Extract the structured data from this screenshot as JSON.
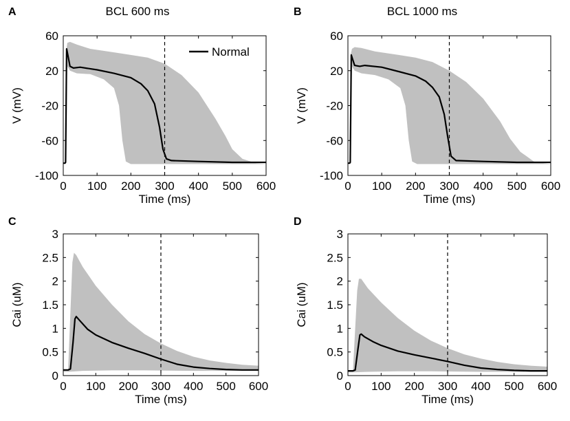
{
  "colors": {
    "band": "#c0c0c0",
    "line": "#000000",
    "marker": "#000000",
    "frame": "#000000"
  },
  "chart_data": [
    {
      "panel": "A",
      "type": "area",
      "title": "BCL 600 ms",
      "xlabel": "Time (ms)",
      "ylabel": "V (mV)",
      "xlim": [
        0,
        600
      ],
      "ylim": [
        -100,
        60
      ],
      "xticks": [
        "0",
        "100",
        "200",
        "300",
        "400",
        "500",
        "600"
      ],
      "yticks": [
        "-100",
        "-60",
        "-20",
        "20",
        "60"
      ],
      "marker_x": 300,
      "legend": {
        "label": "Normal",
        "position": "top-right"
      },
      "series": [
        {
          "name": "Population range",
          "kind": "band",
          "upper": [
            [
              0,
              -86
            ],
            [
              5,
              -86
            ],
            [
              8,
              40
            ],
            [
              12,
              52
            ],
            [
              20,
              53
            ],
            [
              40,
              50
            ],
            [
              80,
              45
            ],
            [
              150,
              41
            ],
            [
              200,
              38
            ],
            [
              250,
              35
            ],
            [
              300,
              28
            ],
            [
              350,
              15
            ],
            [
              400,
              -5
            ],
            [
              450,
              -35
            ],
            [
              480,
              -55
            ],
            [
              500,
              -70
            ],
            [
              530,
              -81
            ],
            [
              570,
              -86
            ],
            [
              600,
              -87
            ]
          ],
          "lower": [
            [
              600,
              -87
            ],
            [
              260,
              -87
            ],
            [
              200,
              -87
            ],
            [
              185,
              -84
            ],
            [
              175,
              -60
            ],
            [
              165,
              -20
            ],
            [
              150,
              0
            ],
            [
              120,
              10
            ],
            [
              80,
              16
            ],
            [
              40,
              17
            ],
            [
              20,
              20
            ],
            [
              12,
              25
            ],
            [
              8,
              -40
            ],
            [
              5,
              -86
            ],
            [
              0,
              -86
            ]
          ]
        },
        {
          "name": "Normal",
          "kind": "line",
          "points": [
            [
              0,
              -86
            ],
            [
              5,
              -86
            ],
            [
              7,
              -85
            ],
            [
              10,
              45
            ],
            [
              14,
              37
            ],
            [
              20,
              25
            ],
            [
              30,
              23
            ],
            [
              50,
              24
            ],
            [
              100,
              21
            ],
            [
              150,
              17
            ],
            [
              200,
              12
            ],
            [
              230,
              5
            ],
            [
              250,
              -3
            ],
            [
              270,
              -18
            ],
            [
              285,
              -45
            ],
            [
              295,
              -70
            ],
            [
              305,
              -81
            ],
            [
              320,
              -83
            ],
            [
              400,
              -84
            ],
            [
              500,
              -85
            ],
            [
              600,
              -85
            ]
          ]
        }
      ]
    },
    {
      "panel": "B",
      "type": "area",
      "title": "BCL 1000 ms",
      "xlabel": "Time (ms)",
      "ylabel": "V (mV)",
      "xlim": [
        0,
        600
      ],
      "ylim": [
        -100,
        60
      ],
      "xticks": [
        "0",
        "100",
        "200",
        "300",
        "400",
        "500",
        "600"
      ],
      "yticks": [
        "-100",
        "-60",
        "-20",
        "20",
        "60"
      ],
      "marker_x": 300,
      "series": [
        {
          "name": "Population range",
          "kind": "band",
          "upper": [
            [
              0,
              -86
            ],
            [
              5,
              -86
            ],
            [
              8,
              38
            ],
            [
              12,
              45
            ],
            [
              20,
              47
            ],
            [
              40,
              46
            ],
            [
              80,
              42
            ],
            [
              150,
              38
            ],
            [
              200,
              35
            ],
            [
              250,
              30
            ],
            [
              300,
              20
            ],
            [
              350,
              7
            ],
            [
              400,
              -12
            ],
            [
              450,
              -38
            ],
            [
              480,
              -58
            ],
            [
              510,
              -73
            ],
            [
              550,
              -84
            ],
            [
              580,
              -86
            ],
            [
              600,
              -87
            ]
          ],
          "lower": [
            [
              600,
              -87
            ],
            [
              260,
              -87
            ],
            [
              205,
              -87
            ],
            [
              190,
              -84
            ],
            [
              180,
              -60
            ],
            [
              170,
              -20
            ],
            [
              155,
              0
            ],
            [
              120,
              10
            ],
            [
              80,
              15
            ],
            [
              40,
              17
            ],
            [
              20,
              20
            ],
            [
              12,
              25
            ],
            [
              8,
              -40
            ],
            [
              5,
              -86
            ],
            [
              0,
              -86
            ]
          ]
        },
        {
          "name": "Normal",
          "kind": "line",
          "points": [
            [
              0,
              -86
            ],
            [
              5,
              -86
            ],
            [
              7,
              -85
            ],
            [
              10,
              38
            ],
            [
              14,
              33
            ],
            [
              20,
              26
            ],
            [
              35,
              25
            ],
            [
              50,
              26
            ],
            [
              100,
              24
            ],
            [
              150,
              19
            ],
            [
              200,
              14
            ],
            [
              230,
              8
            ],
            [
              250,
              1
            ],
            [
              270,
              -10
            ],
            [
              285,
              -30
            ],
            [
              295,
              -55
            ],
            [
              305,
              -78
            ],
            [
              320,
              -83
            ],
            [
              400,
              -84
            ],
            [
              500,
              -85
            ],
            [
              600,
              -85
            ]
          ]
        }
      ]
    },
    {
      "panel": "C",
      "type": "area",
      "title": "",
      "xlabel": "Time (ms)",
      "ylabel": "Cai (uM)",
      "xlim": [
        0,
        600
      ],
      "ylim": [
        0,
        3
      ],
      "xticks": [
        "0",
        "100",
        "200",
        "300",
        "400",
        "500",
        "600"
      ],
      "yticks": [
        "0",
        "0.5",
        "1",
        "1.5",
        "2",
        "2.5",
        "3"
      ],
      "marker_x": 300,
      "series": [
        {
          "name": "Population range",
          "kind": "band",
          "upper": [
            [
              0,
              0.13
            ],
            [
              15,
              0.13
            ],
            [
              28,
              2.4
            ],
            [
              33,
              2.6
            ],
            [
              40,
              2.55
            ],
            [
              60,
              2.3
            ],
            [
              100,
              1.9
            ],
            [
              150,
              1.5
            ],
            [
              200,
              1.15
            ],
            [
              250,
              0.88
            ],
            [
              300,
              0.68
            ],
            [
              350,
              0.52
            ],
            [
              400,
              0.4
            ],
            [
              450,
              0.32
            ],
            [
              500,
              0.27
            ],
            [
              550,
              0.23
            ],
            [
              600,
              0.21
            ]
          ],
          "lower": [
            [
              600,
              0.1
            ],
            [
              400,
              0.1
            ],
            [
              250,
              0.11
            ],
            [
              150,
              0.11
            ],
            [
              60,
              0.1
            ],
            [
              15,
              0.08
            ],
            [
              0,
              0.08
            ]
          ]
        },
        {
          "name": "Normal",
          "kind": "line",
          "points": [
            [
              0,
              0.12
            ],
            [
              15,
              0.12
            ],
            [
              22,
              0.14
            ],
            [
              30,
              0.7
            ],
            [
              36,
              1.2
            ],
            [
              40,
              1.25
            ],
            [
              50,
              1.17
            ],
            [
              75,
              0.98
            ],
            [
              100,
              0.86
            ],
            [
              150,
              0.7
            ],
            [
              200,
              0.58
            ],
            [
              250,
              0.47
            ],
            [
              300,
              0.35
            ],
            [
              350,
              0.24
            ],
            [
              400,
              0.18
            ],
            [
              450,
              0.15
            ],
            [
              500,
              0.13
            ],
            [
              550,
              0.12
            ],
            [
              600,
              0.12
            ]
          ]
        }
      ]
    },
    {
      "panel": "D",
      "type": "area",
      "title": "",
      "xlabel": "Time (ms)",
      "ylabel": "Cai (uM)",
      "xlim": [
        0,
        600
      ],
      "ylim": [
        0,
        3
      ],
      "xticks": [
        "0",
        "100",
        "200",
        "300",
        "400",
        "500",
        "600"
      ],
      "yticks": [
        "0",
        "0.5",
        "1",
        "1.5",
        "2",
        "2.5",
        "3"
      ],
      "marker_x": 300,
      "series": [
        {
          "name": "Population range",
          "kind": "band",
          "upper": [
            [
              0,
              0.1
            ],
            [
              15,
              0.1
            ],
            [
              28,
              1.8
            ],
            [
              33,
              2.05
            ],
            [
              40,
              2.05
            ],
            [
              60,
              1.85
            ],
            [
              100,
              1.55
            ],
            [
              150,
              1.22
            ],
            [
              200,
              0.95
            ],
            [
              250,
              0.74
            ],
            [
              300,
              0.58
            ],
            [
              350,
              0.45
            ],
            [
              400,
              0.36
            ],
            [
              450,
              0.29
            ],
            [
              500,
              0.24
            ],
            [
              550,
              0.21
            ],
            [
              600,
              0.19
            ]
          ],
          "lower": [
            [
              600,
              0.08
            ],
            [
              400,
              0.08
            ],
            [
              250,
              0.09
            ],
            [
              150,
              0.09
            ],
            [
              60,
              0.08
            ],
            [
              15,
              0.07
            ],
            [
              0,
              0.07
            ]
          ]
        },
        {
          "name": "Normal",
          "kind": "line",
          "points": [
            [
              0,
              0.1
            ],
            [
              15,
              0.1
            ],
            [
              22,
              0.12
            ],
            [
              30,
              0.55
            ],
            [
              36,
              0.86
            ],
            [
              40,
              0.88
            ],
            [
              50,
              0.82
            ],
            [
              75,
              0.72
            ],
            [
              100,
              0.64
            ],
            [
              150,
              0.52
            ],
            [
              200,
              0.44
            ],
            [
              250,
              0.37
            ],
            [
              300,
              0.3
            ],
            [
              350,
              0.22
            ],
            [
              400,
              0.16
            ],
            [
              450,
              0.13
            ],
            [
              500,
              0.11
            ],
            [
              550,
              0.1
            ],
            [
              600,
              0.1
            ]
          ]
        }
      ]
    }
  ]
}
